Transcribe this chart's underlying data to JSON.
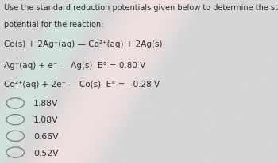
{
  "background_color": "#d4d4d4",
  "title_line1": "Use the standard reduction potentials given below to determine the standard",
  "title_line2": "potential for the reaction:",
  "reaction": "Co(s) + 2Ag⁺(aq) — Co²⁺(aq) + 2Ag(s)",
  "eq1": "Ag⁺(aq) + e⁻ — Ag(s)  E° = 0.80 V",
  "eq2": "Co²⁺(aq) + 2e⁻ — Co(s)  E° = - 0.28 V",
  "choices": [
    "1.88V",
    "1.08V",
    "0.66V",
    "0.52V"
  ],
  "text_color": "#2a2a2a",
  "circle_color": "#777777",
  "font_size_header": 7.0,
  "font_size_eq": 7.5,
  "font_size_choice": 7.8,
  "bg_base": [
    0.84,
    0.84,
    0.84
  ]
}
